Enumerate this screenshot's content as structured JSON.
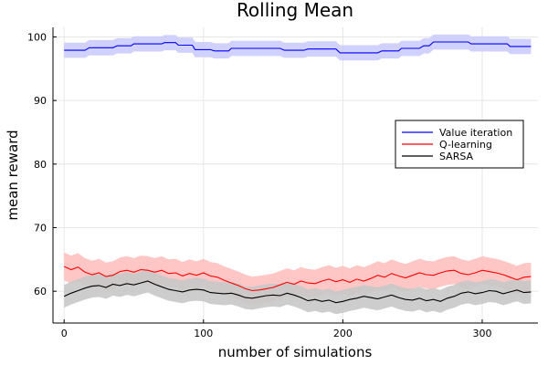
{
  "chart_data": {
    "type": "line",
    "title": "Rolling Mean",
    "xlabel": "number of simulations",
    "ylabel": "mean reward",
    "xlim": [
      -8,
      340
    ],
    "ylim": [
      55,
      101.5
    ],
    "xticks": [
      0,
      100,
      200,
      300
    ],
    "yticks": [
      60,
      70,
      80,
      90,
      100
    ],
    "grid": true,
    "legend_position": "right",
    "series": [
      {
        "name": "Value iteration",
        "color": "#0000ff",
        "band_color": "#ccccff",
        "band_halfwidth": 1.2,
        "points": [
          [
            0,
            97.9
          ],
          [
            15,
            97.9
          ],
          [
            18,
            98.3
          ],
          [
            35,
            98.3
          ],
          [
            38,
            98.6
          ],
          [
            48,
            98.6
          ],
          [
            50,
            98.9
          ],
          [
            70,
            98.9
          ],
          [
            72,
            99.1
          ],
          [
            80,
            99.1
          ],
          [
            82,
            98.7
          ],
          [
            92,
            98.7
          ],
          [
            94,
            98.0
          ],
          [
            105,
            98.0
          ],
          [
            108,
            97.8
          ],
          [
            118,
            97.8
          ],
          [
            120,
            98.2
          ],
          [
            155,
            98.2
          ],
          [
            158,
            97.9
          ],
          [
            172,
            97.9
          ],
          [
            175,
            98.1
          ],
          [
            195,
            98.1
          ],
          [
            198,
            97.5
          ],
          [
            225,
            97.5
          ],
          [
            228,
            97.8
          ],
          [
            240,
            97.8
          ],
          [
            242,
            98.2
          ],
          [
            255,
            98.2
          ],
          [
            258,
            98.6
          ],
          [
            262,
            98.6
          ],
          [
            265,
            99.2
          ],
          [
            290,
            99.2
          ],
          [
            292,
            98.9
          ],
          [
            318,
            98.9
          ],
          [
            320,
            98.5
          ],
          [
            335,
            98.5
          ]
        ]
      },
      {
        "name": "Q-learning",
        "color": "#ff0000",
        "band_color": "#ffc0c0",
        "band_halfwidth": 2.2,
        "points": [
          [
            0,
            63.9
          ],
          [
            5,
            63.4
          ],
          [
            10,
            63.8
          ],
          [
            15,
            63.0
          ],
          [
            20,
            62.6
          ],
          [
            25,
            62.9
          ],
          [
            30,
            62.3
          ],
          [
            35,
            62.5
          ],
          [
            40,
            63.1
          ],
          [
            45,
            63.3
          ],
          [
            50,
            63.0
          ],
          [
            55,
            63.4
          ],
          [
            60,
            63.3
          ],
          [
            65,
            63.0
          ],
          [
            70,
            63.3
          ],
          [
            75,
            62.8
          ],
          [
            80,
            62.9
          ],
          [
            85,
            62.4
          ],
          [
            90,
            62.8
          ],
          [
            95,
            62.5
          ],
          [
            100,
            62.9
          ],
          [
            105,
            62.4
          ],
          [
            110,
            62.2
          ],
          [
            115,
            61.7
          ],
          [
            120,
            61.3
          ],
          [
            125,
            60.9
          ],
          [
            130,
            60.4
          ],
          [
            135,
            60.1
          ],
          [
            140,
            60.2
          ],
          [
            145,
            60.4
          ],
          [
            150,
            60.6
          ],
          [
            155,
            61.0
          ],
          [
            160,
            61.4
          ],
          [
            165,
            61.1
          ],
          [
            170,
            61.6
          ],
          [
            175,
            61.3
          ],
          [
            180,
            61.2
          ],
          [
            185,
            61.6
          ],
          [
            190,
            61.9
          ],
          [
            195,
            61.5
          ],
          [
            200,
            61.8
          ],
          [
            205,
            61.4
          ],
          [
            210,
            61.9
          ],
          [
            215,
            61.6
          ],
          [
            220,
            62.0
          ],
          [
            225,
            62.5
          ],
          [
            230,
            62.2
          ],
          [
            235,
            62.8
          ],
          [
            240,
            62.4
          ],
          [
            245,
            62.1
          ],
          [
            250,
            62.5
          ],
          [
            255,
            62.9
          ],
          [
            260,
            62.6
          ],
          [
            265,
            62.5
          ],
          [
            270,
            62.9
          ],
          [
            275,
            63.2
          ],
          [
            280,
            63.3
          ],
          [
            285,
            62.8
          ],
          [
            290,
            62.6
          ],
          [
            295,
            62.9
          ],
          [
            300,
            63.3
          ],
          [
            305,
            63.1
          ],
          [
            310,
            62.9
          ],
          [
            315,
            62.6
          ],
          [
            320,
            62.2
          ],
          [
            325,
            61.8
          ],
          [
            330,
            62.2
          ],
          [
            335,
            62.3
          ]
        ]
      },
      {
        "name": "SARSA",
        "color": "#000000",
        "band_color": "#c8c8c8",
        "band_halfwidth": 1.8,
        "points": [
          [
            0,
            59.2
          ],
          [
            5,
            59.7
          ],
          [
            10,
            60.1
          ],
          [
            15,
            60.5
          ],
          [
            20,
            60.8
          ],
          [
            25,
            60.9
          ],
          [
            30,
            60.6
          ],
          [
            35,
            61.1
          ],
          [
            40,
            60.9
          ],
          [
            45,
            61.2
          ],
          [
            50,
            61.0
          ],
          [
            55,
            61.3
          ],
          [
            60,
            61.6
          ],
          [
            65,
            61.1
          ],
          [
            70,
            60.7
          ],
          [
            75,
            60.3
          ],
          [
            80,
            60.1
          ],
          [
            85,
            59.9
          ],
          [
            90,
            60.2
          ],
          [
            95,
            60.3
          ],
          [
            100,
            60.2
          ],
          [
            105,
            59.8
          ],
          [
            110,
            59.7
          ],
          [
            115,
            59.6
          ],
          [
            120,
            59.7
          ],
          [
            125,
            59.4
          ],
          [
            130,
            59.0
          ],
          [
            135,
            58.9
          ],
          [
            140,
            59.1
          ],
          [
            145,
            59.3
          ],
          [
            150,
            59.4
          ],
          [
            155,
            59.3
          ],
          [
            160,
            59.7
          ],
          [
            165,
            59.4
          ],
          [
            170,
            59.0
          ],
          [
            175,
            58.5
          ],
          [
            180,
            58.7
          ],
          [
            185,
            58.4
          ],
          [
            190,
            58.6
          ],
          [
            195,
            58.2
          ],
          [
            200,
            58.4
          ],
          [
            205,
            58.7
          ],
          [
            210,
            58.9
          ],
          [
            215,
            59.2
          ],
          [
            220,
            59.0
          ],
          [
            225,
            58.8
          ],
          [
            230,
            59.1
          ],
          [
            235,
            59.4
          ],
          [
            240,
            59.0
          ],
          [
            245,
            58.7
          ],
          [
            250,
            58.6
          ],
          [
            255,
            58.9
          ],
          [
            260,
            58.5
          ],
          [
            265,
            58.7
          ],
          [
            270,
            58.4
          ],
          [
            275,
            58.9
          ],
          [
            280,
            59.2
          ],
          [
            285,
            59.7
          ],
          [
            290,
            59.9
          ],
          [
            295,
            59.6
          ],
          [
            300,
            59.8
          ],
          [
            305,
            60.1
          ],
          [
            310,
            60.0
          ],
          [
            315,
            59.6
          ],
          [
            320,
            59.9
          ],
          [
            325,
            60.2
          ],
          [
            330,
            59.8
          ],
          [
            335,
            59.9
          ]
        ]
      }
    ]
  }
}
